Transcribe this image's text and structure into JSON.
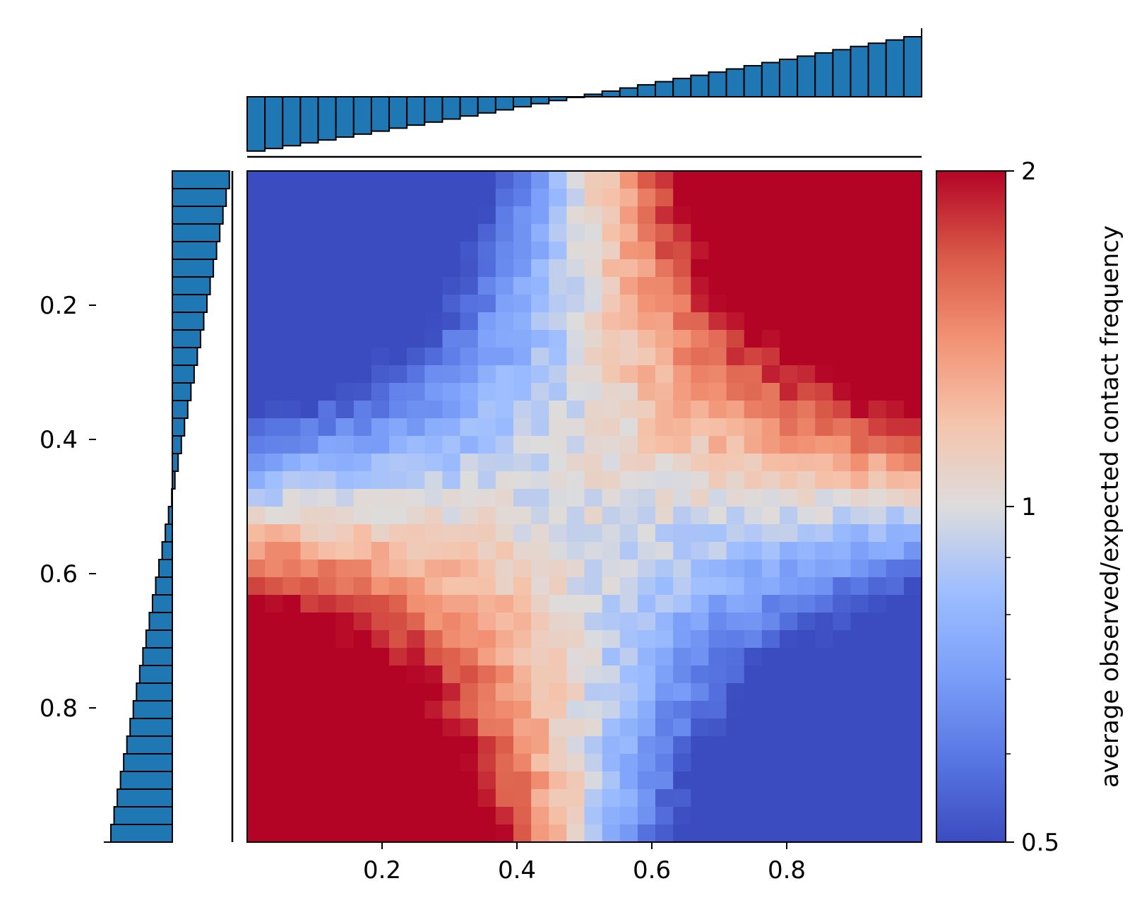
{
  "chart_data": {
    "type": "heatmap",
    "grid_size": 38,
    "x_ticks": [
      "0.2",
      "0.4",
      "0.6",
      "0.8"
    ],
    "x_tick_values": [
      0.2,
      0.4,
      0.6,
      0.8
    ],
    "y_ticks": [
      "0.2",
      "0.4",
      "0.6",
      "0.8"
    ],
    "y_tick_values": [
      0.2,
      0.4,
      0.6,
      0.8
    ],
    "xlim": [
      0.0,
      1.0
    ],
    "ylim": [
      0.0,
      1.0
    ],
    "colormap": "coolwarm",
    "colorbar": {
      "label": "average observed/expected contact frequency",
      "scale": "log",
      "ticks": [
        "2",
        "1",
        "0.5"
      ],
      "tick_values": [
        2,
        1,
        0.5
      ],
      "minor_tick_values": [
        0.6,
        0.7,
        0.8,
        0.9
      ],
      "range": [
        0.5,
        2
      ]
    },
    "top_marginal": {
      "type": "bar",
      "description_bins": 38,
      "values_start": -0.75,
      "values_end": 0.83,
      "range": [
        -0.75,
        0.83
      ]
    },
    "left_marginal": {
      "type": "barh",
      "values_start": 0.65,
      "values_end": -0.7,
      "range": [
        -0.7,
        0.65
      ]
    },
    "bar_color": "#1f77b4",
    "edge_color": "#000000"
  }
}
